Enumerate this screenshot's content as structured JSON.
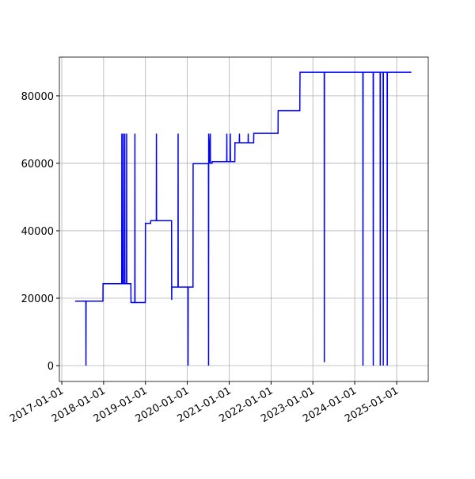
{
  "chart_data": {
    "type": "line",
    "color": "#0000ff",
    "grid": true,
    "x": [
      "2017-04-28",
      "2017-07-30",
      "2017-07-31",
      "2017-08-01",
      "2017-12-26",
      "2017-12-27",
      "2018-06-08",
      "2018-06-09",
      "2018-06-10",
      "2018-06-20",
      "2018-06-21",
      "2018-06-22",
      "2018-07-04",
      "2018-07-05",
      "2018-07-06",
      "2018-07-20",
      "2018-07-21",
      "2018-07-22",
      "2018-08-27",
      "2018-08-28",
      "2018-09-30",
      "2018-10-01",
      "2018-10-02",
      "2018-12-31",
      "2019-01-01",
      "2019-02-15",
      "2019-02-16",
      "2019-04-06",
      "2019-04-07",
      "2019-04-08",
      "2019-08-17",
      "2019-08-18",
      "2019-08-19",
      "2019-10-12",
      "2019-10-13",
      "2019-10-14",
      "2020-01-07",
      "2020-01-08",
      "2020-01-09",
      "2020-02-20",
      "2020-02-21",
      "2020-07-04",
      "2020-07-05",
      "2020-07-06",
      "2020-07-10",
      "2020-07-20",
      "2020-07-21",
      "2020-08-05",
      "2020-08-06",
      "2020-12-10",
      "2020-12-11",
      "2020-12-12",
      "2021-01-10",
      "2021-01-11",
      "2021-01-12",
      "2021-02-19",
      "2021-02-20",
      "2021-03-30",
      "2021-03-31",
      "2021-04-01",
      "2021-06-15",
      "2021-06-16",
      "2021-06-17",
      "2021-08-02",
      "2021-08-03",
      "2022-03-03",
      "2022-03-04",
      "2022-09-09",
      "2022-09-10",
      "2022-09-11",
      "2023-04-10",
      "2023-04-11",
      "2023-04-12",
      "2024-03-12",
      "2024-03-13",
      "2024-03-14",
      "2024-06-10",
      "2024-06-11",
      "2024-06-12",
      "2024-08-10",
      "2024-08-11",
      "2024-08-12",
      "2024-09-05",
      "2024-09-06",
      "2024-09-07",
      "2024-10-10",
      "2024-10-11",
      "2024-10-12",
      "2025-05-09"
    ],
    "values": [
      19100,
      19100,
      0,
      19100,
      19100,
      24300,
      24300,
      68800,
      24300,
      24300,
      68800,
      24300,
      24300,
      68800,
      24300,
      24300,
      68800,
      24300,
      24300,
      18700,
      18700,
      68800,
      18700,
      18700,
      42200,
      42200,
      43000,
      43000,
      68800,
      43000,
      43000,
      19500,
      23300,
      23300,
      68800,
      23300,
      23300,
      0,
      23300,
      23300,
      59900,
      59900,
      0,
      68800,
      59900,
      68800,
      60000,
      60000,
      60500,
      60500,
      68800,
      60500,
      60500,
      68800,
      60500,
      60500,
      66100,
      66100,
      68800,
      66100,
      66100,
      68800,
      66100,
      66100,
      68900,
      68900,
      75600,
      75600,
      83000,
      87000,
      87000,
      1000,
      87000,
      87000,
      0,
      87000,
      87000,
      0,
      87000,
      87000,
      0,
      87000,
      87000,
      0,
      87000,
      87000,
      0,
      87000,
      87000
    ],
    "xlim": [
      "2016-12-11",
      "2025-10-04"
    ],
    "xticks": [
      "2017-01-01",
      "2018-01-01",
      "2019-01-01",
      "2020-01-01",
      "2021-01-01",
      "2022-01-01",
      "2023-01-01",
      "2024-01-01",
      "2025-01-01"
    ],
    "ylim": [
      -4700,
      91500
    ],
    "yticks": [
      0,
      20000,
      40000,
      60000,
      80000
    ]
  }
}
